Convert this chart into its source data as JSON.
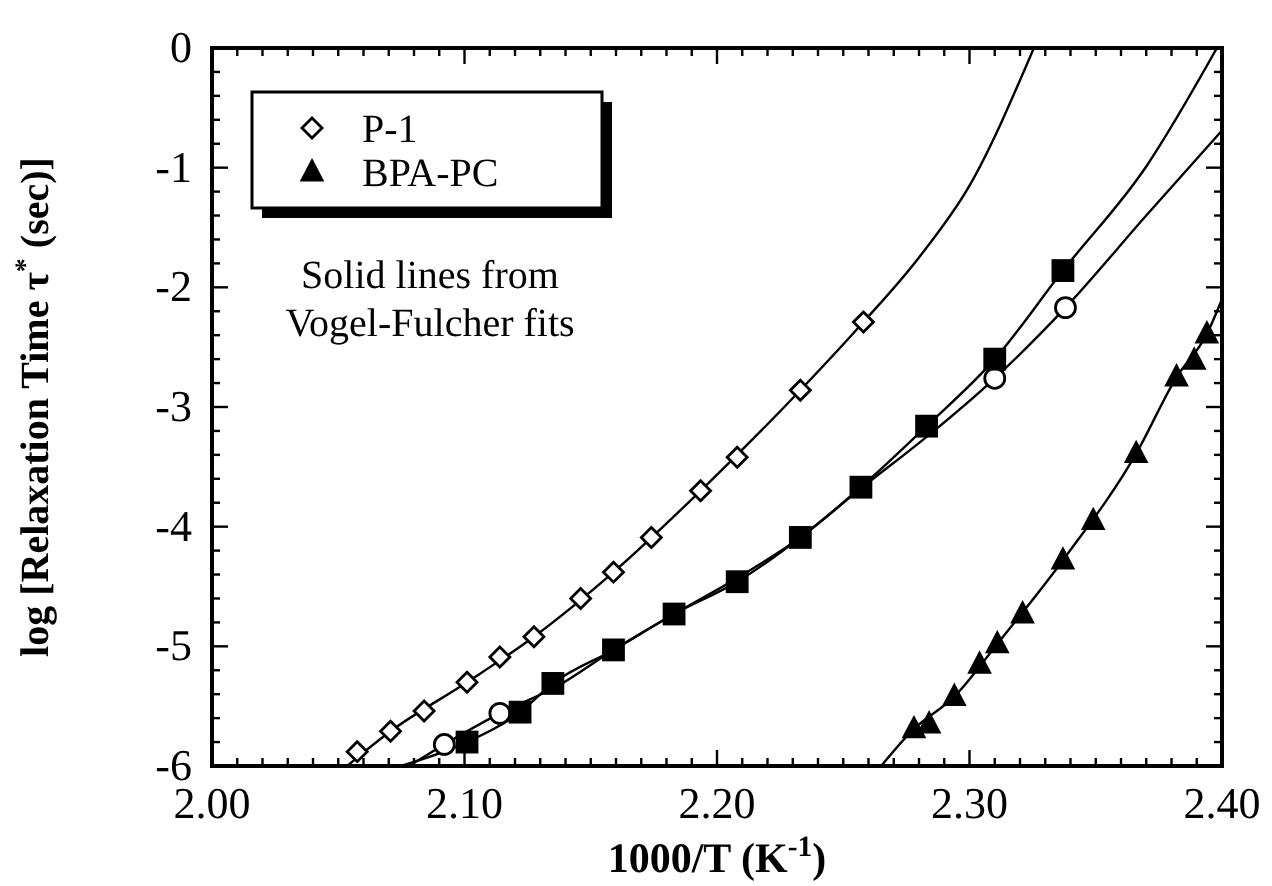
{
  "chart_data": {
    "type": "scatter",
    "xlabel": "1000/T  (K$^{-1}$)",
    "ylabel": "log [Relaxation Time τ$^{*}$ (sec)]",
    "annotations": [
      "Solid lines from\nVogel-Fulcher fits"
    ],
    "xlim": [
      2.0,
      2.4
    ],
    "ylim": [
      -6,
      0
    ],
    "xticks": [
      {
        "value": 2.0,
        "label": "2.00"
      },
      {
        "value": 2.01,
        "label": null
      },
      {
        "value": 2.02,
        "label": null
      },
      {
        "value": 2.03,
        "label": null
      },
      {
        "value": 2.04,
        "label": null
      },
      {
        "value": 2.05,
        "label": null
      },
      {
        "value": 2.06,
        "label": null
      },
      {
        "value": 2.07,
        "label": null
      },
      {
        "value": 2.08,
        "label": null
      },
      {
        "value": 2.09,
        "label": null
      },
      {
        "value": 2.1,
        "label": "2.10"
      },
      {
        "value": 2.11,
        "label": null
      },
      {
        "value": 2.12,
        "label": null
      },
      {
        "value": 2.13,
        "label": null
      },
      {
        "value": 2.14,
        "label": null
      },
      {
        "value": 2.15,
        "label": null
      },
      {
        "value": 2.16,
        "label": null
      },
      {
        "value": 2.17,
        "label": null
      },
      {
        "value": 2.18,
        "label": null
      },
      {
        "value": 2.19,
        "label": null
      },
      {
        "value": 2.2,
        "label": "2.20"
      },
      {
        "value": 2.21,
        "label": null
      },
      {
        "value": 2.22,
        "label": null
      },
      {
        "value": 2.23,
        "label": null
      },
      {
        "value": 2.24,
        "label": null
      },
      {
        "value": 2.25,
        "label": null
      },
      {
        "value": 2.26,
        "label": null
      },
      {
        "value": 2.27,
        "label": null
      },
      {
        "value": 2.28,
        "label": null
      },
      {
        "value": 2.29,
        "label": null
      },
      {
        "value": 2.3,
        "label": "2.30"
      },
      {
        "value": 2.31,
        "label": null
      },
      {
        "value": 2.32,
        "label": null
      },
      {
        "value": 2.33,
        "label": null
      },
      {
        "value": 2.34,
        "label": null
      },
      {
        "value": 2.35,
        "label": null
      },
      {
        "value": 2.36,
        "label": null
      },
      {
        "value": 2.37,
        "label": null
      },
      {
        "value": 2.38,
        "label": null
      },
      {
        "value": 2.39,
        "label": null
      },
      {
        "value": 2.4,
        "label": "2.40"
      }
    ],
    "yticks": [
      -6,
      {
        "value": -5.8,
        "label": null
      },
      {
        "value": -5.6,
        "label": null
      },
      {
        "value": -5.4,
        "label": null
      },
      {
        "value": -5.2,
        "label": null
      },
      -5,
      {
        "value": -4.8,
        "label": null
      },
      {
        "value": -4.6,
        "label": null
      },
      {
        "value": -4.4,
        "label": null
      },
      {
        "value": -4.2,
        "label": null
      },
      -4,
      {
        "value": -3.8,
        "label": null
      },
      {
        "value": -3.6,
        "label": null
      },
      {
        "value": -3.4,
        "label": null
      },
      {
        "value": -3.2,
        "label": null
      },
      -3,
      {
        "value": -2.8,
        "label": null
      },
      {
        "value": -2.6,
        "label": null
      },
      {
        "value": -2.4,
        "label": null
      },
      {
        "value": -2.2,
        "label": null
      },
      -2,
      {
        "value": -1.8,
        "label": null
      },
      {
        "value": -1.6,
        "label": null
      },
      {
        "value": -1.4,
        "label": null
      },
      {
        "value": -1.2,
        "label": null
      },
      -1,
      {
        "value": -0.8,
        "label": null
      },
      {
        "value": -0.6,
        "label": null
      },
      {
        "value": -0.4,
        "label": null
      },
      {
        "value": -0.2,
        "label": null
      },
      0
    ],
    "legend": "top left",
    "series": [
      {
        "color": "#000000",
        "marker": "circle",
        "x": [
          2.092,
          2.114,
          2.31,
          2.338
        ],
        "values": [
          -5.82,
          -5.56,
          -2.76,
          -2.17
        ]
      },
      {
        "color": "#000000",
        "marker": "square",
        "x": [
          2.101,
          2.122,
          2.135,
          2.159,
          2.183,
          2.208,
          2.233,
          2.257,
          2.283,
          2.31,
          2.337
        ],
        "values": [
          -5.8,
          -5.55,
          -5.31,
          -5.03,
          -4.73,
          -4.46,
          -4.09,
          -3.67,
          -3.16,
          -2.6,
          -1.86
        ]
      },
      {
        "name": "P-1",
        "color": "#000000",
        "marker": "diamond",
        "x": [
          2.0575,
          2.0707,
          2.084,
          2.101,
          2.114,
          2.1275,
          2.146,
          2.159,
          2.174,
          2.1935,
          2.208,
          2.233,
          2.258
        ],
        "values": [
          -5.88,
          -5.71,
          -5.54,
          -5.3,
          -5.09,
          -4.92,
          -4.6,
          -4.38,
          -4.09,
          -3.7,
          -3.42,
          -2.86,
          -2.29
        ]
      },
      {
        "name": "BPA-PC",
        "color": "#000000",
        "marker": "triangle",
        "x": [
          2.278,
          2.284,
          2.294,
          2.304,
          2.311,
          2.321,
          2.337,
          2.349,
          2.366,
          2.382,
          2.389,
          2.394
        ],
        "values": [
          -5.69,
          -5.65,
          -5.42,
          -5.15,
          -4.98,
          -4.73,
          -4.28,
          -3.95,
          -3.39,
          -2.75,
          -2.61,
          -2.39
        ]
      },
      {
        "type": "line",
        "color": "#000000",
        "marker": "none",
        "x": [
          2.078,
          2.092,
          2.114,
          2.137,
          2.159,
          2.183,
          2.208,
          2.233,
          2.257,
          2.283,
          2.31,
          2.338,
          2.37,
          2.4
        ],
        "values": [
          -6,
          -5.82,
          -5.56,
          -5.33,
          -5.03,
          -4.73,
          -4.43,
          -4.09,
          -3.68,
          -3.25,
          -2.76,
          -2.17,
          -1.4,
          -0.69
        ]
      },
      {
        "type": "line",
        "color": "#000000",
        "marker": "none",
        "x": [
          2.0747,
          2.101,
          2.122,
          2.135,
          2.159,
          2.183,
          2.208,
          2.233,
          2.257,
          2.283,
          2.31,
          2.337,
          2.37,
          2.398
        ],
        "values": [
          -6,
          -5.8,
          -5.55,
          -5.31,
          -5.03,
          -4.73,
          -4.46,
          -4.09,
          -3.67,
          -3.16,
          -2.6,
          -1.86,
          -0.99,
          0
        ]
      },
      {
        "type": "line",
        "color": "#000000",
        "marker": "none",
        "x": [
          2.0535,
          2.0707,
          2.101,
          2.1275,
          2.159,
          2.1935,
          2.233,
          2.258,
          2.28,
          2.3,
          2.3255
        ],
        "values": [
          -6,
          -5.71,
          -5.3,
          -4.92,
          -4.38,
          -3.7,
          -2.86,
          -2.29,
          -1.75,
          -1.15,
          0
        ]
      },
      {
        "type": "line",
        "color": "#000000",
        "marker": "none",
        "x": [
          2.265,
          2.278,
          2.294,
          2.311,
          2.337,
          2.366,
          2.382,
          2.394,
          2.4
        ],
        "values": [
          -6,
          -5.69,
          -5.42,
          -4.98,
          -4.28,
          -3.39,
          -2.75,
          -2.39,
          -2.1
        ]
      }
    ]
  }
}
